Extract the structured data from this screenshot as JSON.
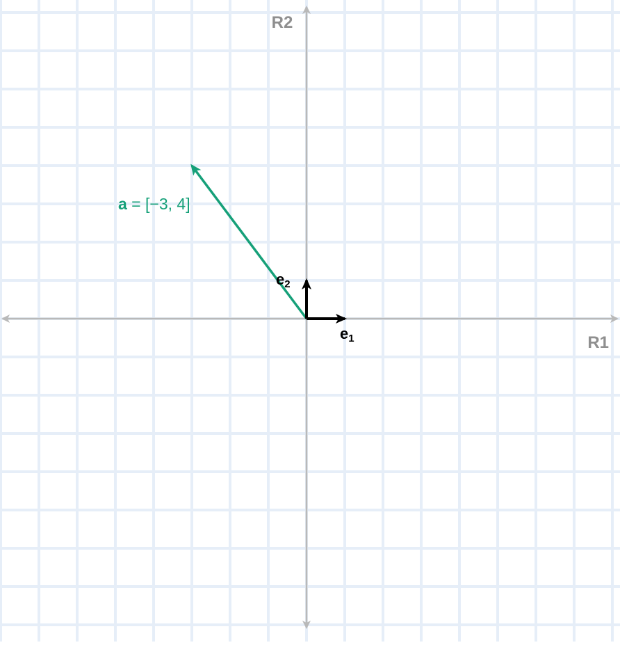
{
  "colors": {
    "grid": "#e6eef8",
    "axis": "#b9b9b9",
    "axis_label": "#8f8f8f",
    "vector": "#16a079",
    "basis": "#000000"
  },
  "axes": {
    "x_label": "R1",
    "y_label": "R2"
  },
  "grid": {
    "x_range": [
      -8,
      8
    ],
    "y_range": [
      -8,
      8
    ],
    "unit": 1
  },
  "basis": {
    "e1": {
      "name": "e",
      "sub": "1",
      "vector": [
        1,
        0
      ]
    },
    "e2": {
      "name": "e",
      "sub": "2",
      "vector": [
        0,
        1
      ]
    }
  },
  "vector_a": {
    "name": "a",
    "label_rest": " = [−3, 4]",
    "components": [
      -3,
      4
    ]
  }
}
